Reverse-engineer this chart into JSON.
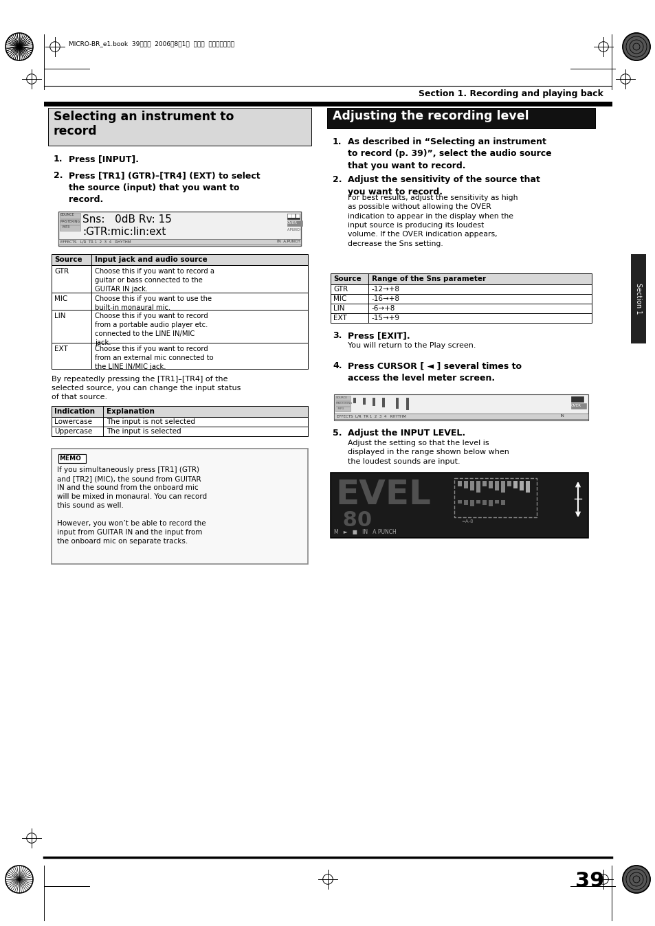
{
  "page_bg": "#ffffff",
  "section_title": "Section 1. Recording and playing back",
  "page_number": "39",
  "top_meta": "MICRO-BR_e1.book  39ページ  2006年8月1日  火曜日  午後１２晎６分",
  "source_table_rows": [
    [
      "GTR",
      "Choose this if you want to record a\nguitar or bass connected to the\nGUITAR IN jack."
    ],
    [
      "MIC",
      "Choose this if you want to use the\nbuilt-in monaural mic."
    ],
    [
      "LIN",
      "Choose this if you want to record\nfrom a portable audio player etc.\nconnected to the LINE IN/MIC\njack."
    ],
    [
      "EXT",
      "Choose this if you want to record\nfrom an external mic connected to\nthe LINE IN/MIC jack."
    ]
  ],
  "indication_table_rows": [
    [
      "Lowercase",
      "The input is not selected"
    ],
    [
      "Uppercase",
      "The input is selected"
    ]
  ],
  "memo_text_line1": "If you simultaneously press [TR1] (GTR)",
  "memo_text_line2": "and [TR2] (MIC), the sound from GUITAR",
  "memo_text_line3": "IN and the sound from the onboard mic",
  "memo_text_line4": "will be mixed in monaural. You can record",
  "memo_text_line5": "this sound as well.",
  "memo_text_line6": "However, you won’t be able to record the",
  "memo_text_line7": "input from GUITAR IN and the input from",
  "memo_text_line8": "the onboard mic on separate tracks.",
  "sns_table_rows": [
    [
      "GTR",
      "-12→+8"
    ],
    [
      "MIC",
      "-16→+8"
    ],
    [
      "LIN",
      "-6→+8"
    ],
    [
      "EXT",
      "-15→+9"
    ]
  ]
}
